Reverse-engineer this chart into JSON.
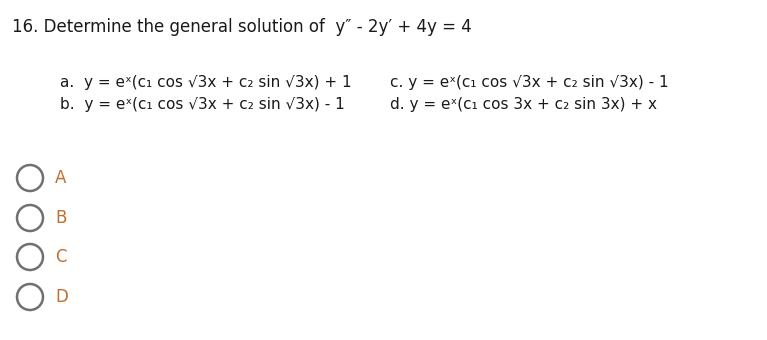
{
  "background_color": "#ffffff",
  "title": "16. Determine the general solution of  y″ - 2y′ + 4y = 4",
  "title_fontsize": 12.0,
  "option_a": "a.  y = eˣ(c₁ cos √3x + c₂ sin √3x) + 1",
  "option_b": "b.  y = eˣ(c₁ cos √3x + c₂ sin √3x) - 1",
  "option_c": "c. y = eˣ(c₁ cos √3x + c₂ sin √3x) - 1",
  "option_d": "d. y = eˣ(c₁ cos 3x + c₂ sin 3x) + x",
  "options_fontsize": 11.0,
  "radio_labels": [
    "A",
    "B",
    "C",
    "D"
  ],
  "radio_label_color": "#c07030",
  "text_color": "#1a1a1a",
  "circle_color": "#707070"
}
